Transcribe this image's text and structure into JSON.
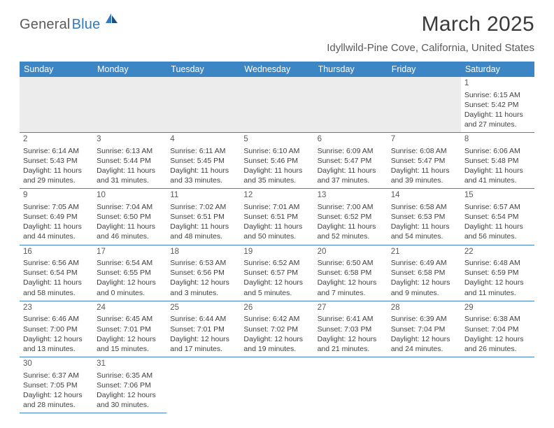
{
  "logo": {
    "part1": "General",
    "part2": "Blue"
  },
  "title": "March 2025",
  "location": "Idyllwild-Pine Cove, California, United States",
  "colors": {
    "header_bg": "#3d86c6",
    "header_fg": "#ffffff",
    "divider": "#3d86c6",
    "blank_bg": "#ececec",
    "text": "#404040",
    "title_text": "#3a3a3a",
    "logo_gray": "#5a5a5a",
    "logo_blue": "#2f7ac0"
  },
  "weekdays": [
    "Sunday",
    "Monday",
    "Tuesday",
    "Wednesday",
    "Thursday",
    "Friday",
    "Saturday"
  ],
  "days": {
    "1": {
      "sunrise": "6:15 AM",
      "sunset": "5:42 PM",
      "daylight": "11 hours and 27 minutes."
    },
    "2": {
      "sunrise": "6:14 AM",
      "sunset": "5:43 PM",
      "daylight": "11 hours and 29 minutes."
    },
    "3": {
      "sunrise": "6:13 AM",
      "sunset": "5:44 PM",
      "daylight": "11 hours and 31 minutes."
    },
    "4": {
      "sunrise": "6:11 AM",
      "sunset": "5:45 PM",
      "daylight": "11 hours and 33 minutes."
    },
    "5": {
      "sunrise": "6:10 AM",
      "sunset": "5:46 PM",
      "daylight": "11 hours and 35 minutes."
    },
    "6": {
      "sunrise": "6:09 AM",
      "sunset": "5:47 PM",
      "daylight": "11 hours and 37 minutes."
    },
    "7": {
      "sunrise": "6:08 AM",
      "sunset": "5:47 PM",
      "daylight": "11 hours and 39 minutes."
    },
    "8": {
      "sunrise": "6:06 AM",
      "sunset": "5:48 PM",
      "daylight": "11 hours and 41 minutes."
    },
    "9": {
      "sunrise": "7:05 AM",
      "sunset": "6:49 PM",
      "daylight": "11 hours and 44 minutes."
    },
    "10": {
      "sunrise": "7:04 AM",
      "sunset": "6:50 PM",
      "daylight": "11 hours and 46 minutes."
    },
    "11": {
      "sunrise": "7:02 AM",
      "sunset": "6:51 PM",
      "daylight": "11 hours and 48 minutes."
    },
    "12": {
      "sunrise": "7:01 AM",
      "sunset": "6:51 PM",
      "daylight": "11 hours and 50 minutes."
    },
    "13": {
      "sunrise": "7:00 AM",
      "sunset": "6:52 PM",
      "daylight": "11 hours and 52 minutes."
    },
    "14": {
      "sunrise": "6:58 AM",
      "sunset": "6:53 PM",
      "daylight": "11 hours and 54 minutes."
    },
    "15": {
      "sunrise": "6:57 AM",
      "sunset": "6:54 PM",
      "daylight": "11 hours and 56 minutes."
    },
    "16": {
      "sunrise": "6:56 AM",
      "sunset": "6:54 PM",
      "daylight": "11 hours and 58 minutes."
    },
    "17": {
      "sunrise": "6:54 AM",
      "sunset": "6:55 PM",
      "daylight": "12 hours and 0 minutes."
    },
    "18": {
      "sunrise": "6:53 AM",
      "sunset": "6:56 PM",
      "daylight": "12 hours and 3 minutes."
    },
    "19": {
      "sunrise": "6:52 AM",
      "sunset": "6:57 PM",
      "daylight": "12 hours and 5 minutes."
    },
    "20": {
      "sunrise": "6:50 AM",
      "sunset": "6:58 PM",
      "daylight": "12 hours and 7 minutes."
    },
    "21": {
      "sunrise": "6:49 AM",
      "sunset": "6:58 PM",
      "daylight": "12 hours and 9 minutes."
    },
    "22": {
      "sunrise": "6:48 AM",
      "sunset": "6:59 PM",
      "daylight": "12 hours and 11 minutes."
    },
    "23": {
      "sunrise": "6:46 AM",
      "sunset": "7:00 PM",
      "daylight": "12 hours and 13 minutes."
    },
    "24": {
      "sunrise": "6:45 AM",
      "sunset": "7:01 PM",
      "daylight": "12 hours and 15 minutes."
    },
    "25": {
      "sunrise": "6:44 AM",
      "sunset": "7:01 PM",
      "daylight": "12 hours and 17 minutes."
    },
    "26": {
      "sunrise": "6:42 AM",
      "sunset": "7:02 PM",
      "daylight": "12 hours and 19 minutes."
    },
    "27": {
      "sunrise": "6:41 AM",
      "sunset": "7:03 PM",
      "daylight": "12 hours and 21 minutes."
    },
    "28": {
      "sunrise": "6:39 AM",
      "sunset": "7:04 PM",
      "daylight": "12 hours and 24 minutes."
    },
    "29": {
      "sunrise": "6:38 AM",
      "sunset": "7:04 PM",
      "daylight": "12 hours and 26 minutes."
    },
    "30": {
      "sunrise": "6:37 AM",
      "sunset": "7:05 PM",
      "daylight": "12 hours and 28 minutes."
    },
    "31": {
      "sunrise": "6:35 AM",
      "sunset": "7:06 PM",
      "daylight": "12 hours and 30 minutes."
    }
  },
  "labels": {
    "sunrise": "Sunrise: ",
    "sunset": "Sunset: ",
    "daylight": "Daylight: "
  },
  "grid": [
    [
      null,
      null,
      null,
      null,
      null,
      null,
      "1"
    ],
    [
      "2",
      "3",
      "4",
      "5",
      "6",
      "7",
      "8"
    ],
    [
      "9",
      "10",
      "11",
      "12",
      "13",
      "14",
      "15"
    ],
    [
      "16",
      "17",
      "18",
      "19",
      "20",
      "21",
      "22"
    ],
    [
      "23",
      "24",
      "25",
      "26",
      "27",
      "28",
      "29"
    ],
    [
      "30",
      "31",
      null,
      null,
      null,
      null,
      null
    ]
  ]
}
